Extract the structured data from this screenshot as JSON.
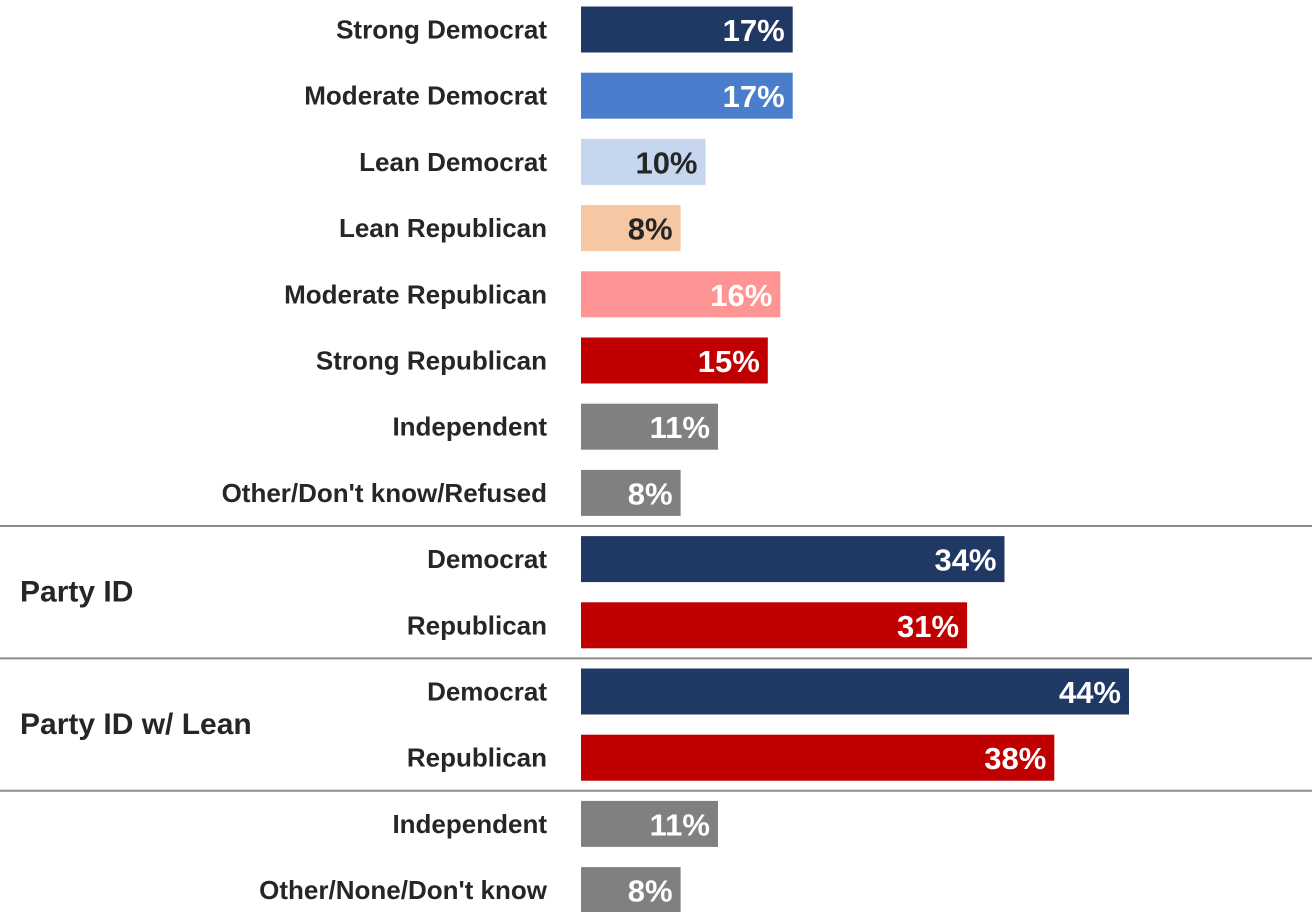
{
  "chart_data": {
    "type": "bar",
    "orientation": "horizontal",
    "categories": [
      "Strong Democrat",
      "Moderate Democrat",
      "Lean Democrat",
      "Lean Republican",
      "Moderate Republican",
      "Strong Republican",
      "Independent",
      "Other/Don't know/Refused",
      "Democrat",
      "Republican",
      "Democrat",
      "Republican",
      "Independent",
      "Other/None/Don't know"
    ],
    "values": [
      17,
      17,
      10,
      8,
      16,
      15,
      11,
      8,
      34,
      31,
      44,
      38,
      11,
      8
    ],
    "value_labels": [
      "17%",
      "17%",
      "10%",
      "8%",
      "16%",
      "15%",
      "11%",
      "8%",
      "34%",
      "31%",
      "44%",
      "38%",
      "11%",
      "8%"
    ],
    "bar_colors": [
      "#1f3864",
      "#4a7dcb",
      "#c5d6ee",
      "#f5c7a2",
      "#ff9494",
      "#c00000",
      "#808080",
      "#808080",
      "#1f3864",
      "#c00000",
      "#1f3864",
      "#c00000",
      "#808080",
      "#808080"
    ],
    "label_colors": [
      "#ffffff",
      "#ffffff",
      "#262626",
      "#262626",
      "#ffffff",
      "#ffffff",
      "#ffffff",
      "#ffffff",
      "#ffffff",
      "#ffffff",
      "#ffffff",
      "#ffffff",
      "#ffffff",
      "#ffffff"
    ],
    "groups": [
      {
        "label": "Party ID",
        "categories": [
          8,
          9
        ]
      },
      {
        "label": "Party ID w/ Lean",
        "categories": [
          10,
          11
        ]
      }
    ],
    "separators_after": [
      7,
      9,
      11
    ],
    "xlim": [
      0,
      44
    ],
    "grid": false,
    "legend": "none",
    "title": "",
    "xlabel": "",
    "ylabel": ""
  }
}
